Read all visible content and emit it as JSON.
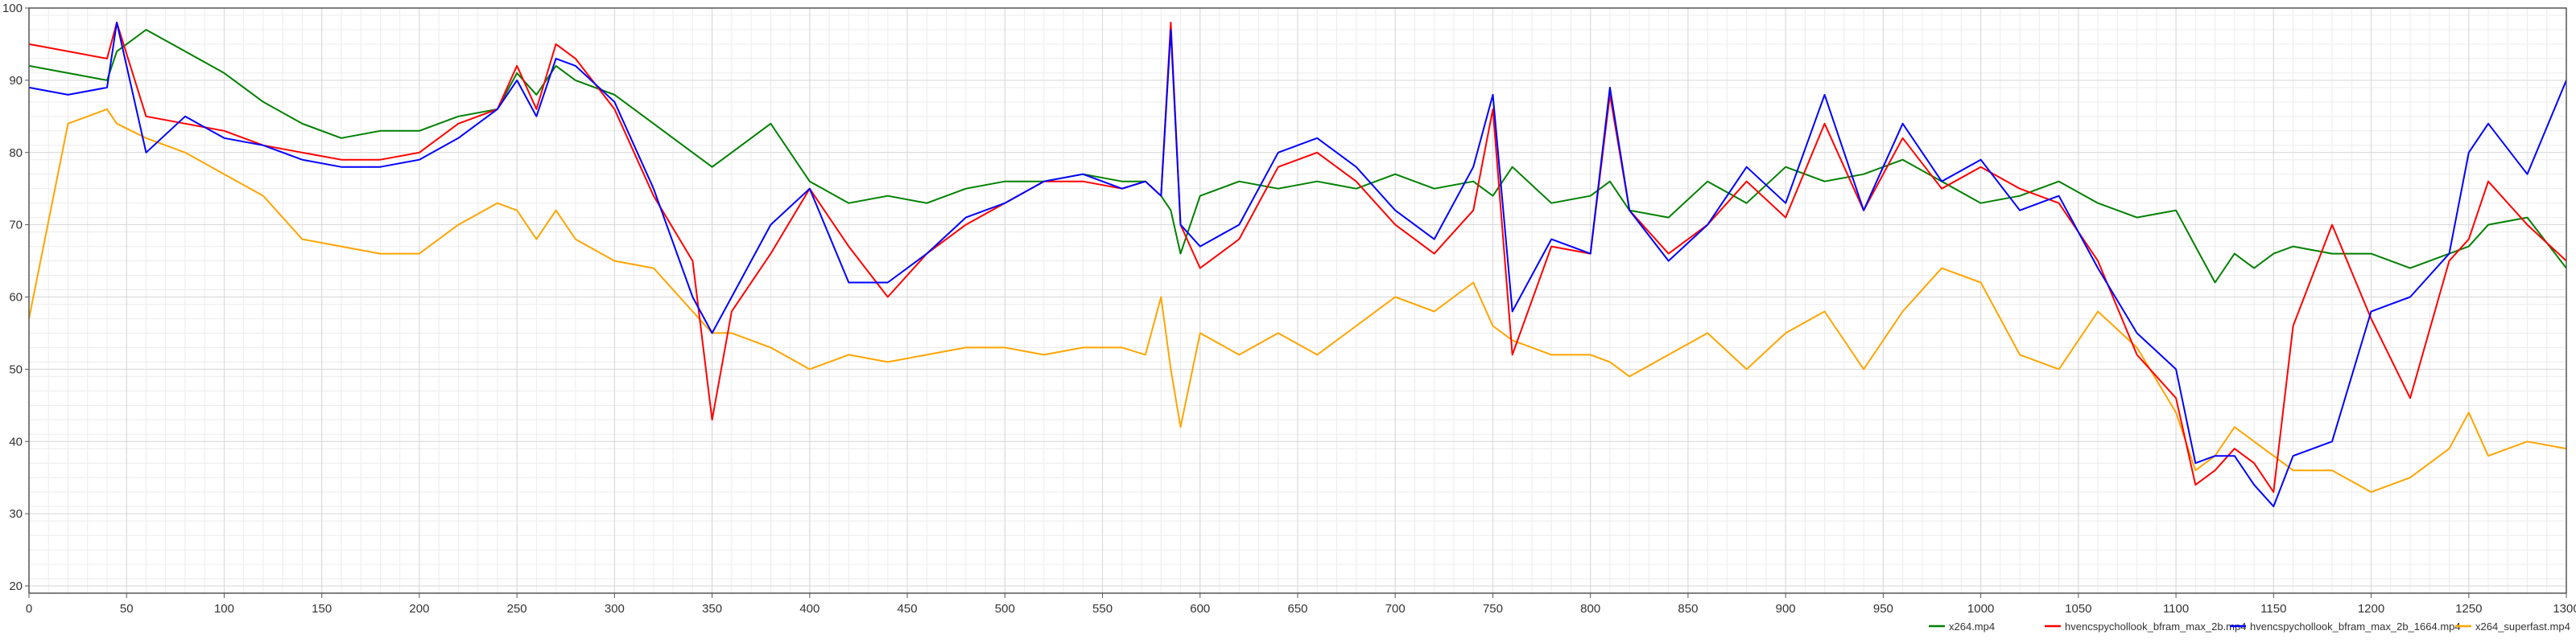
{
  "chart_data": {
    "type": "line",
    "title": "",
    "xlabel": "",
    "ylabel": "",
    "xlim": [
      0,
      1300
    ],
    "ylim": [
      19,
      100
    ],
    "x_ticks": [
      0,
      50,
      100,
      150,
      200,
      250,
      300,
      350,
      400,
      450,
      500,
      550,
      600,
      650,
      700,
      750,
      800,
      850,
      900,
      950,
      1000,
      1050,
      1100,
      1150,
      1200,
      1250,
      1300
    ],
    "y_ticks": [
      20,
      30,
      40,
      50,
      60,
      70,
      80,
      90,
      100
    ],
    "grid": true,
    "legend_position": "bottom-right",
    "x": [
      0,
      20,
      40,
      45,
      60,
      80,
      100,
      120,
      140,
      160,
      180,
      200,
      220,
      240,
      250,
      260,
      270,
      280,
      300,
      320,
      340,
      350,
      360,
      380,
      400,
      420,
      440,
      460,
      480,
      500,
      520,
      540,
      560,
      572,
      580,
      585,
      590,
      600,
      620,
      640,
      660,
      680,
      700,
      720,
      740,
      750,
      760,
      780,
      800,
      810,
      820,
      840,
      860,
      880,
      900,
      920,
      940,
      960,
      980,
      1000,
      1020,
      1040,
      1060,
      1080,
      1100,
      1110,
      1120,
      1130,
      1140,
      1150,
      1160,
      1180,
      1200,
      1220,
      1240,
      1250,
      1260,
      1280,
      1300
    ],
    "series": [
      {
        "name": "x264.mp4",
        "color": "#008000",
        "values": [
          92,
          91,
          90,
          94,
          97,
          94,
          91,
          87,
          84,
          82,
          83,
          83,
          85,
          86,
          91,
          88,
          92,
          90,
          88,
          84,
          80,
          78,
          80,
          84,
          76,
          73,
          74,
          73,
          75,
          76,
          76,
          77,
          76,
          76,
          74,
          72,
          66,
          74,
          76,
          75,
          76,
          75,
          77,
          75,
          76,
          74,
          78,
          73,
          74,
          76,
          72,
          71,
          76,
          73,
          78,
          76,
          77,
          79,
          76,
          73,
          74,
          76,
          73,
          71,
          72,
          67,
          62,
          66,
          64,
          66,
          67,
          66,
          66,
          64,
          66,
          67,
          70,
          71,
          64
        ]
      },
      {
        "name": "hvencspychollook_bfram_max_2b.mp4",
        "color": "#ff0000",
        "values": [
          95,
          94,
          93,
          98,
          85,
          84,
          83,
          81,
          80,
          79,
          79,
          80,
          84,
          86,
          92,
          86,
          95,
          93,
          86,
          74,
          65,
          43,
          58,
          66,
          75,
          67,
          60,
          66,
          70,
          73,
          76,
          76,
          75,
          76,
          74,
          98,
          70,
          64,
          68,
          78,
          80,
          76,
          70,
          66,
          72,
          86,
          52,
          67,
          66,
          88,
          72,
          66,
          70,
          76,
          71,
          84,
          72,
          82,
          75,
          78,
          75,
          73,
          65,
          52,
          46,
          34,
          36,
          39,
          37,
          33,
          56,
          70,
          57,
          46,
          65,
          68,
          76,
          70,
          65
        ]
      },
      {
        "name": "hvencspychollook_bfram_max_2b_1664.mp4",
        "color": "#0000ff",
        "values": [
          89,
          88,
          89,
          98,
          80,
          85,
          82,
          81,
          79,
          78,
          78,
          79,
          82,
          86,
          90,
          85,
          93,
          92,
          87,
          75,
          60,
          55,
          60,
          70,
          75,
          62,
          62,
          66,
          71,
          73,
          76,
          77,
          75,
          76,
          74,
          97,
          70,
          67,
          70,
          80,
          82,
          78,
          72,
          68,
          78,
          88,
          58,
          68,
          66,
          89,
          72,
          65,
          70,
          78,
          73,
          88,
          72,
          84,
          76,
          79,
          72,
          74,
          64,
          55,
          50,
          37,
          38,
          38,
          34,
          31,
          38,
          40,
          58,
          60,
          66,
          80,
          84,
          77,
          90
        ]
      },
      {
        "name": "x264_superfast.mp4",
        "color": "#ffa500",
        "values": [
          57,
          84,
          86,
          84,
          82,
          80,
          77,
          74,
          68,
          67,
          66,
          66,
          70,
          73,
          72,
          68,
          72,
          68,
          65,
          64,
          58,
          55,
          55,
          53,
          50,
          52,
          51,
          52,
          53,
          53,
          52,
          53,
          53,
          52,
          60,
          50,
          42,
          55,
          52,
          55,
          52,
          56,
          60,
          58,
          62,
          56,
          54,
          52,
          52,
          51,
          49,
          52,
          55,
          50,
          55,
          58,
          50,
          58,
          64,
          62,
          52,
          50,
          58,
          53,
          44,
          36,
          38,
          42,
          40,
          38,
          36,
          36,
          33,
          35,
          39,
          44,
          38,
          40,
          39
        ]
      }
    ]
  }
}
